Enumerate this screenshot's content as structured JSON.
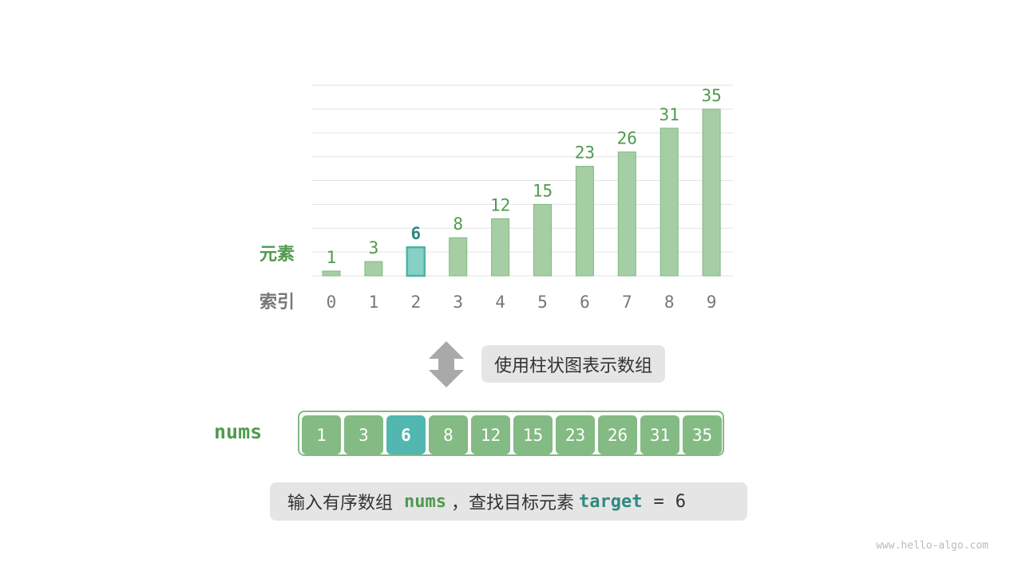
{
  "chart_data": {
    "type": "bar",
    "categories": [
      "0",
      "1",
      "2",
      "3",
      "4",
      "5",
      "6",
      "7",
      "8",
      "9"
    ],
    "values": [
      1,
      3,
      6,
      8,
      12,
      15,
      23,
      26,
      31,
      35
    ],
    "highlight_index": 2,
    "ylabel": "元素",
    "xlabel": "索引",
    "ylim": [
      0,
      40
    ],
    "grid": true,
    "colors": {
      "bar": "#a5cea5",
      "bar_border": "#82b882",
      "highlight": "#86d0c6",
      "highlight_border": "#4db3a9",
      "value_label": "#4f9a4f",
      "highlight_label": "#2f8a80",
      "tick": "#777777"
    }
  },
  "arrow_icon": "double-arrow-vertical-icon",
  "caption": "使用柱状图表示数组",
  "array": {
    "name": "nums",
    "values": [
      "1",
      "3",
      "6",
      "8",
      "12",
      "15",
      "23",
      "26",
      "31",
      "35"
    ],
    "highlight_index": 2
  },
  "bottom": {
    "prefix": "输入有序数组",
    "nums": "nums",
    "middle": "，查找目标元素",
    "target": "target",
    "eq": "=",
    "value": "6"
  },
  "watermark": "www.hello-algo.com"
}
